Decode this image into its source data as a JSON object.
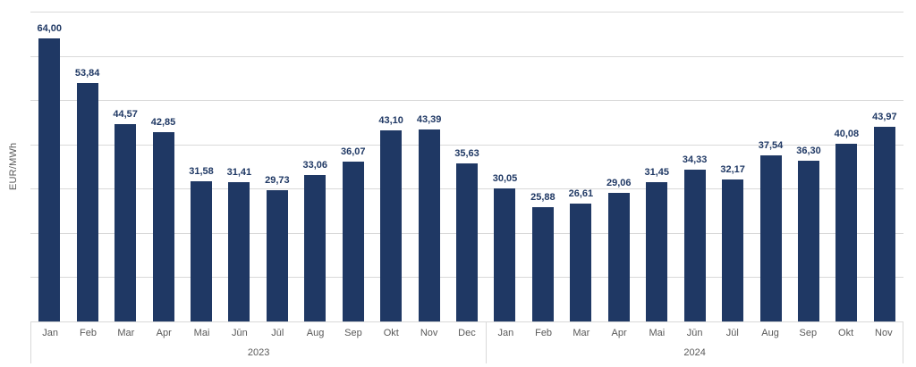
{
  "chart_data": {
    "type": "bar",
    "title": "",
    "ylabel": "EUR/MWh",
    "xlabel": "",
    "ylim": [
      0,
      70
    ],
    "gridline_step": 10,
    "grid": true,
    "legend": false,
    "decimal_separator": ",",
    "bar_color": "#1f3864",
    "value_label_color": "#1f3864",
    "gridline_color": "#d9d9d9",
    "axis_text_color": "#595959",
    "groups": [
      {
        "year": "2023",
        "months": [
          "Jan",
          "Feb",
          "Mar",
          "Apr",
          "Mai",
          "Jūn",
          "Jūl",
          "Aug",
          "Sep",
          "Okt",
          "Nov",
          "Dec"
        ],
        "values": [
          64.0,
          53.84,
          44.57,
          42.85,
          31.58,
          31.41,
          29.73,
          33.06,
          36.07,
          43.1,
          43.39,
          35.63
        ]
      },
      {
        "year": "2024",
        "months": [
          "Jan",
          "Feb",
          "Mar",
          "Apr",
          "Mai",
          "Jūn",
          "Jūl",
          "Aug",
          "Sep",
          "Okt",
          "Nov"
        ],
        "values": [
          30.05,
          25.88,
          26.61,
          29.06,
          31.45,
          34.33,
          32.17,
          37.54,
          36.3,
          40.08,
          43.97
        ]
      }
    ]
  }
}
